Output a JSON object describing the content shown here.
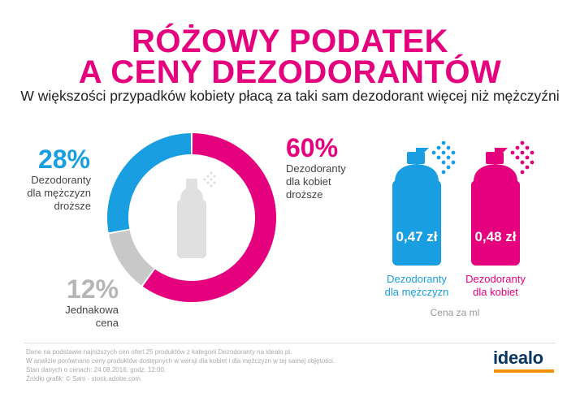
{
  "title": {
    "line1": "RÓŻOWY PODATEK",
    "line2": "A CENY DEZODORANTÓW",
    "subtitle": "W większości przypadków kobiety płacą za taki sam dezodorant więcej niż mężczyźni"
  },
  "colors": {
    "pink": "#e5007e",
    "blue": "#1a9ee2",
    "gray": "#c8c8c8"
  },
  "chart_data": [
    {
      "type": "pie",
      "slices": [
        {
          "label_value": "60%",
          "value": 60,
          "text": [
            "Dezodoranty",
            "dla kobiet",
            "droższe"
          ],
          "color": "#e5007e"
        },
        {
          "label_value": "12%",
          "value": 12,
          "text": [
            "Jednakowa",
            "cena"
          ],
          "color": "#c8c8c8"
        },
        {
          "label_value": "28%",
          "value": 28,
          "text": [
            "Dezodoranty",
            "dla mężczyzn",
            "droższe"
          ],
          "color": "#1a9ee2"
        }
      ]
    },
    {
      "type": "bar",
      "xlabel": "Cena za ml",
      "bars": [
        {
          "value": 0.47,
          "value_label": "0,47 zł",
          "category": [
            "Dezodoranty",
            "dla mężczyzn"
          ],
          "color": "#1a9ee2"
        },
        {
          "value": 0.48,
          "value_label": "0,48 zł",
          "category": [
            "Dezodoranty",
            "dla kobiet"
          ],
          "color": "#e5007e"
        }
      ]
    }
  ],
  "footer": {
    "lines": [
      "Dane na podstawie najniższych cen ofert 25 produktów z kategorii Dezodoranty na idealo.pl.",
      "W analizie porównano ceny produktów dostępnych w wersji dla kobiet i dla mężczyzn w tej samej objętości.",
      "Stan danych o cenach: 24.08.2016, godz. 12:00.",
      "Źródło grafik: © Sam - stock.adobe.com"
    ]
  },
  "logo": {
    "text": "idealo"
  }
}
